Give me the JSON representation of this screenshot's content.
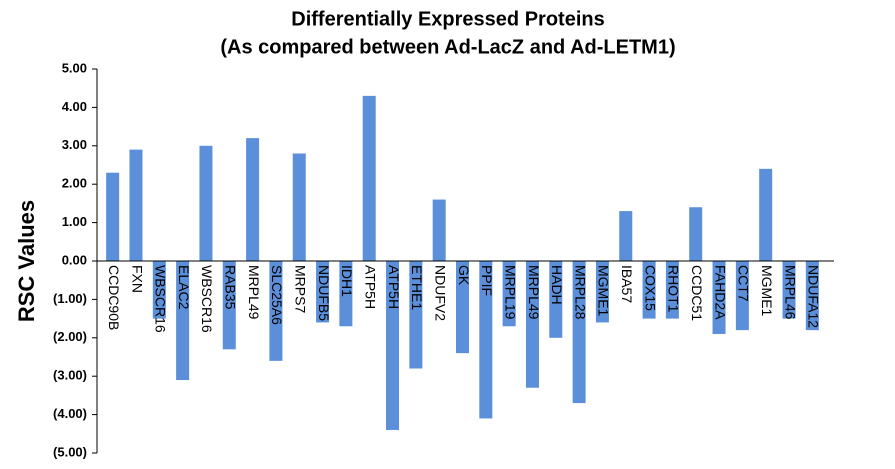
{
  "chart_data": {
    "type": "bar",
    "title": [
      "Differentially Expressed Proteins",
      "(As compared between Ad-LacZ and Ad-LETM1)"
    ],
    "y_label": "RSC Values",
    "categories": [
      "CCDC90B",
      "FXN",
      "WBSCR16",
      "ELAC2",
      "WBSCR16",
      "RAB35",
      "MRPL49",
      "SLC25A6",
      "MRPS7",
      "NDUFB5",
      "IDH1",
      "ATP5H",
      "ATP5H",
      "ETHE1",
      "NDUFV2",
      "GK",
      "PPIF",
      "MRPL19",
      "MRPL49",
      "HADH",
      "MRPL28",
      "MGME1",
      "IBA57",
      "COX15",
      "RHOT1",
      "CCDC51",
      "FAHD2A",
      "CCT7",
      "MGME1",
      "MRPL46",
      "NDUFA12"
    ],
    "values": [
      2.3,
      2.9,
      -1.5,
      -3.1,
      3.0,
      -2.3,
      3.2,
      -2.6,
      2.8,
      -1.6,
      -1.7,
      4.3,
      -4.4,
      -2.8,
      1.6,
      -2.4,
      -4.1,
      -1.7,
      -3.3,
      -2.0,
      -3.7,
      -1.6,
      1.3,
      -1.5,
      -1.5,
      1.4,
      -1.9,
      -1.8,
      2.4,
      -1.5,
      -1.8
    ],
    "color": "#5b8fd9",
    "ylim": [
      -5,
      5
    ],
    "yticks": [
      {
        "value": -5,
        "label": "(5.00)"
      },
      {
        "value": -4,
        "label": "(4.00)"
      },
      {
        "value": -3,
        "label": "(3.00)"
      },
      {
        "value": -2,
        "label": "(2.00)"
      },
      {
        "value": -1,
        "label": "(1.00)"
      },
      {
        "value": 0,
        "label": "0.00"
      },
      {
        "value": 1,
        "label": "1.00"
      },
      {
        "value": 2,
        "label": "2.00"
      },
      {
        "value": 3,
        "label": "3.00"
      },
      {
        "value": 4,
        "label": "4.00"
      },
      {
        "value": 5,
        "label": "5.00"
      }
    ],
    "grid": false
  }
}
